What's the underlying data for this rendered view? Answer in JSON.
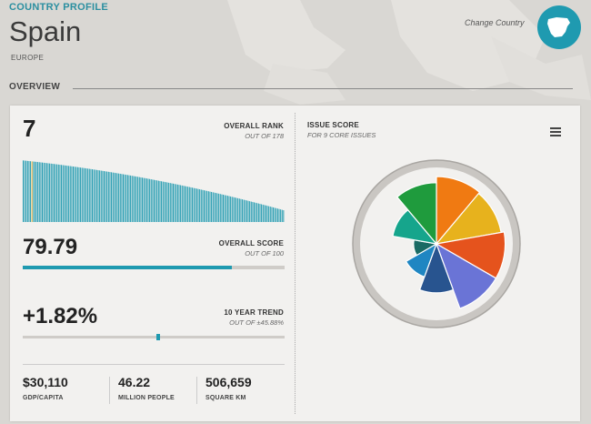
{
  "header": {
    "section_title": "COUNTRY PROFILE",
    "country": "Spain",
    "region": "EUROPE",
    "change_country": "Change Country",
    "map_icon": "spain-map-icon"
  },
  "overview": {
    "label": "OVERVIEW"
  },
  "rank": {
    "value": "7",
    "label": "OVERALL RANK",
    "sub": "OUT OF 178"
  },
  "score": {
    "value": "79.79",
    "label": "OVERALL SCORE",
    "sub": "OUT OF 100",
    "fraction": 0.7979
  },
  "trend": {
    "value": "+1.82%",
    "label": "10 YEAR TREND",
    "sub": "OUT OF ±45.88%",
    "position": 0.51
  },
  "stats": [
    {
      "value": "$30,110",
      "label": "GDP/CAPITA"
    },
    {
      "value": "46.22",
      "label": "MILLION PEOPLE"
    },
    {
      "value": "506,659",
      "label": "SQUARE KM"
    }
  ],
  "issue_score": {
    "title": "ISSUE SCORE",
    "sub": "FOR 9 CORE ISSUES"
  },
  "chart_data": {
    "type": "bar",
    "description_units": "rank distribution of 178 countries, highlighted bar is rank 7",
    "count": 178,
    "highlight_index": 6,
    "bar_color": "#1f9ab0",
    "highlight_color": "#e2b23a",
    "values_start": 0.94,
    "values_end": 0.18
  },
  "rose_data": {
    "issues": [
      {
        "color": "#f07a12",
        "value": 0.88
      },
      {
        "color": "#e7b21d",
        "value": 0.86
      },
      {
        "color": "#e5531d",
        "value": 0.9
      },
      {
        "color": "#6a74d6",
        "value": 0.9
      },
      {
        "color": "#28548f",
        "value": 0.64
      },
      {
        "color": "#1f86c2",
        "value": 0.46
      },
      {
        "color": "#1a6b64",
        "value": 0.3
      },
      {
        "color": "#16a58c",
        "value": 0.58
      },
      {
        "color": "#1f9b3d",
        "value": 0.8
      }
    ]
  }
}
